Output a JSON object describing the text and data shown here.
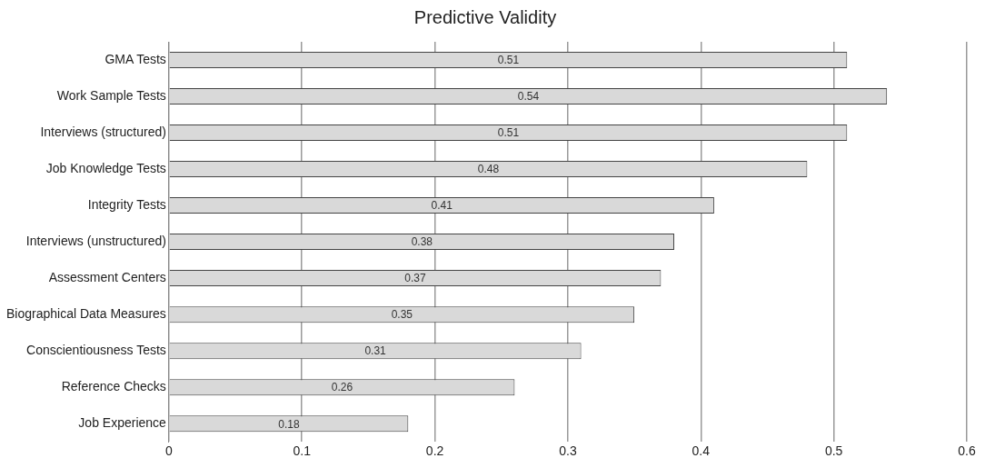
{
  "chart_data": {
    "type": "bar",
    "orientation": "horizontal",
    "title": "Predictive Validity",
    "categories": [
      "GMA Tests",
      "Work Sample Tests",
      "Interviews (structured)",
      "Job Knowledge Tests",
      "Integrity Tests",
      "Interviews (unstructured)",
      "Assessment Centers",
      "Biographical Data Measures",
      "Conscientiousness Tests",
      "Reference Checks",
      "Job Experience"
    ],
    "values": [
      0.51,
      0.54,
      0.51,
      0.48,
      0.41,
      0.38,
      0.37,
      0.35,
      0.31,
      0.26,
      0.18
    ],
    "color": "#d9d9d9",
    "xlim": [
      0,
      0.6
    ],
    "xticks": [
      0,
      0.1,
      0.2,
      0.3,
      0.4,
      0.5,
      0.6
    ],
    "grid": "x",
    "data_labels": true
  }
}
